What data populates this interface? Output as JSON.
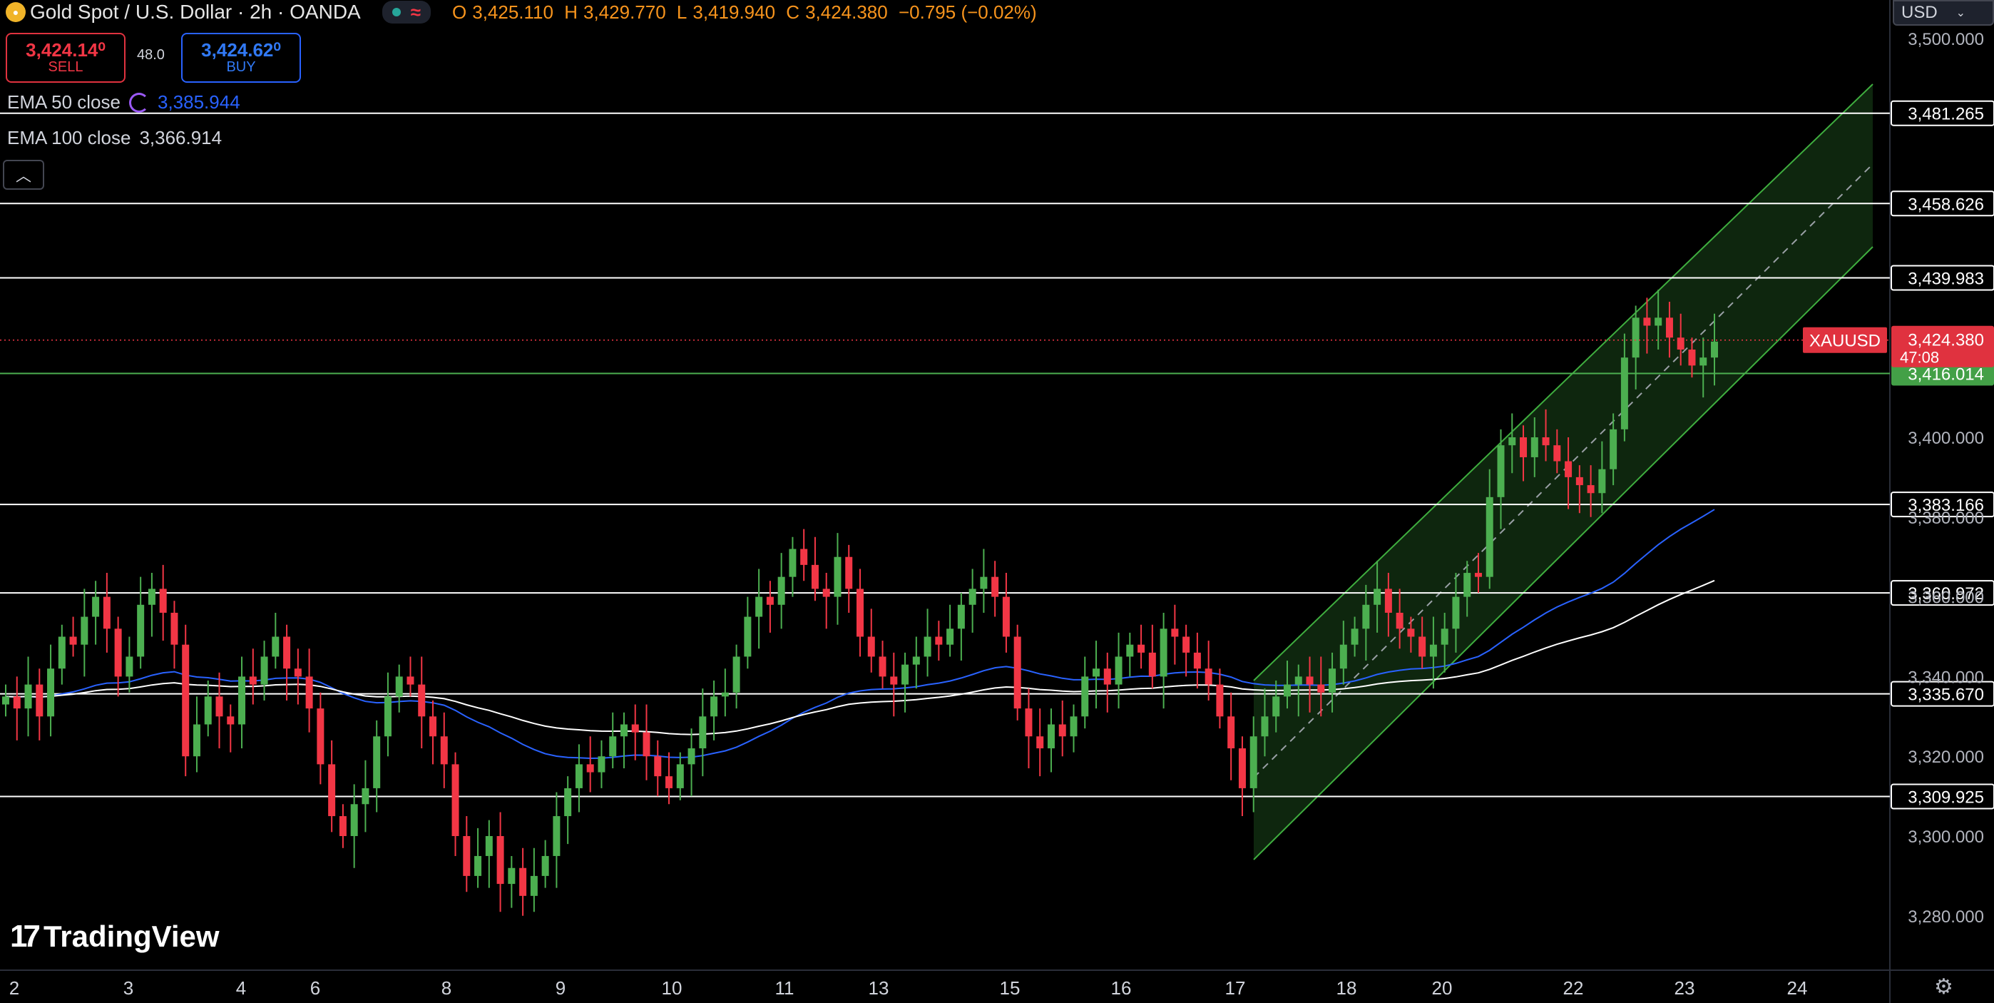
{
  "header": {
    "symbol_title": "Gold Spot / U.S. Dollar · 2h · OANDA",
    "ohlc": {
      "o_label": "O",
      "o": "3,425.110",
      "h_label": "H",
      "h": "3,429.770",
      "l_label": "L",
      "l": "3,419.940",
      "c_label": "C",
      "c": "3,424.380",
      "change": "−0.795 (−0.02%)"
    }
  },
  "trade": {
    "sell_price": "3,424.14⁰",
    "sell_label": "SELL",
    "buy_price": "3,424.62⁰",
    "buy_label": "BUY",
    "spread": "48.0"
  },
  "indicators": {
    "ema50_label": "EMA 50 close",
    "ema50_value": "3,385.944",
    "ema100_label": "EMA 100 close",
    "ema100_value": "3,366.914"
  },
  "currency": "USD",
  "brand": "TradingView",
  "icons": {
    "collapse": "chevron-up-icon",
    "settings": "settings-icon",
    "loading": "loading-icon"
  },
  "colors": {
    "up": "#26a69a",
    "down": "#f23645",
    "channel": "#3fae3f",
    "ema50": "#2962ff",
    "ema100": "#ffffff",
    "level": "#ffffff",
    "support": "#4caf50"
  },
  "chart_data": {
    "type": "candlestick",
    "symbol_tag": "XAUUSD",
    "current_price": "3,424.380",
    "countdown": "47:08",
    "y_axis_ticks": [
      "3,500.000",
      "3,400.000",
      "3,380.000",
      "3,360.000",
      "3,340.000",
      "3,320.000",
      "3,300.000",
      "3,280.000"
    ],
    "ylim": [
      3276,
      3505
    ],
    "x_axis_ticks": [
      "2",
      "3",
      "4",
      "6",
      "8",
      "9",
      "10",
      "11",
      "13",
      "15",
      "16",
      "17",
      "18",
      "20",
      "22",
      "23",
      "24"
    ],
    "horizontal_levels": [
      {
        "value": 3481.265,
        "label": "3,481.265"
      },
      {
        "value": 3458.626,
        "label": "3,458.626"
      },
      {
        "value": 3439.983,
        "label": "3,439.983"
      },
      {
        "value": 3416.014,
        "label": "3,416.014",
        "highlight": true
      },
      {
        "value": 3383.166,
        "label": "3,383.166"
      },
      {
        "value": 3360.972,
        "label": "3,360.972"
      },
      {
        "value": 3335.67,
        "label": "3,335.670"
      },
      {
        "value": 3309.925,
        "label": "3,309.925"
      }
    ],
    "close_series": [
      3335,
      3332,
      3338,
      3330,
      3342,
      3350,
      3348,
      3355,
      3360,
      3352,
      3340,
      3345,
      3358,
      3362,
      3356,
      3348,
      3320,
      3328,
      3335,
      3330,
      3328,
      3340,
      3338,
      3345,
      3350,
      3342,
      3340,
      3332,
      3318,
      3305,
      3300,
      3308,
      3312,
      3325,
      3335,
      3340,
      3338,
      3330,
      3325,
      3318,
      3300,
      3290,
      3295,
      3300,
      3288,
      3292,
      3285,
      3290,
      3295,
      3305,
      3312,
      3318,
      3316,
      3320,
      3325,
      3328,
      3326,
      3320,
      3315,
      3312,
      3318,
      3322,
      3330,
      3335,
      3336,
      3345,
      3355,
      3360,
      3358,
      3365,
      3372,
      3368,
      3362,
      3360,
      3370,
      3362,
      3350,
      3345,
      3340,
      3338,
      3343,
      3345,
      3350,
      3348,
      3352,
      3358,
      3362,
      3365,
      3360,
      3350,
      3332,
      3325,
      3322,
      3328,
      3325,
      3330,
      3340,
      3342,
      3338,
      3345,
      3348,
      3346,
      3340,
      3352,
      3350,
      3346,
      3342,
      3338,
      3330,
      3322,
      3312,
      3325,
      3330,
      3335,
      3338,
      3340,
      3338,
      3336,
      3342,
      3348,
      3352,
      3358,
      3362,
      3356,
      3352,
      3350,
      3345,
      3348,
      3352,
      3360,
      3366,
      3365,
      3385,
      3398,
      3400,
      3395,
      3400,
      3398,
      3394,
      3390,
      3388,
      3386,
      3392,
      3402,
      3420,
      3430,
      3428,
      3430,
      3425,
      3422,
      3418,
      3420,
      3424
    ]
  }
}
